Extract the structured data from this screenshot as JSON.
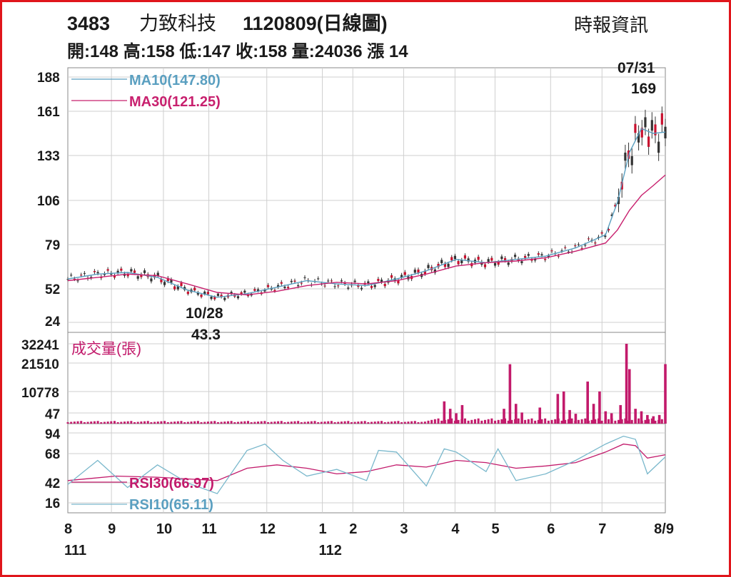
{
  "header": {
    "code": "3483",
    "company": "力致科技",
    "date_label": "1120809(日線圖)",
    "source": "時報資訊",
    "stats": "開:148 高:158 低:147 收:158 量:24036 漲 14"
  },
  "colors": {
    "frame": "#e0161c",
    "ma10": "#5a9fc0",
    "ma30": "#c8206e",
    "volume": "#c21a6b",
    "rsi10": "#7ab8cc",
    "rsi30": "#c21a6b",
    "candle": "#333333",
    "candle_up": "#c8102e"
  },
  "chart_data": [
    {
      "type": "candlestick",
      "name": "price",
      "yticks": [
        "188",
        "161",
        "133",
        "106",
        "79",
        "52",
        "24"
      ],
      "ylim": [
        24,
        188
      ],
      "legend": [
        "MA10(147.80)",
        "MA30(121.25)"
      ],
      "annotations": [
        {
          "label_top": "07/31",
          "label_bottom": "169",
          "x": 0.96,
          "value": 169
        },
        {
          "label_top": "10/28",
          "label_bottom": "43.3",
          "x": 0.232,
          "value": 43.3
        }
      ],
      "ma_series": [
        {
          "name": "MA10(147.80)",
          "x": [
            0,
            0.05,
            0.1,
            0.15,
            0.2,
            0.25,
            0.3,
            0.35,
            0.4,
            0.45,
            0.5,
            0.55,
            0.6,
            0.65,
            0.7,
            0.75,
            0.8,
            0.85,
            0.9,
            0.92,
            0.94,
            0.96,
            0.98,
            1.0
          ],
          "values": [
            58,
            61,
            62,
            59,
            51,
            45,
            48,
            53,
            57,
            55,
            54,
            58,
            63,
            70,
            68,
            70,
            72,
            77,
            85,
            105,
            135,
            150,
            147,
            147.8
          ]
        },
        {
          "name": "MA30(121.25)",
          "x": [
            0,
            0.05,
            0.1,
            0.15,
            0.2,
            0.25,
            0.3,
            0.35,
            0.4,
            0.45,
            0.5,
            0.55,
            0.6,
            0.65,
            0.7,
            0.75,
            0.8,
            0.85,
            0.9,
            0.92,
            0.94,
            0.96,
            0.98,
            1.0
          ],
          "values": [
            57,
            59,
            61,
            60,
            55,
            49,
            47,
            50,
            54,
            56,
            55,
            57,
            61,
            66,
            68,
            69,
            71,
            75,
            80,
            88,
            100,
            109,
            115,
            121.25
          ]
        }
      ]
    },
    {
      "type": "bar",
      "name": "volume",
      "title": "成交量(張)",
      "yticks": [
        "32241",
        "21510",
        "10778",
        "47"
      ],
      "ylim": [
        47,
        32241
      ],
      "bars": [
        {
          "x": 0.63,
          "v": 9000
        },
        {
          "x": 0.64,
          "v": 6000
        },
        {
          "x": 0.65,
          "v": 4200
        },
        {
          "x": 0.66,
          "v": 7500
        },
        {
          "x": 0.73,
          "v": 6000
        },
        {
          "x": 0.74,
          "v": 24000
        },
        {
          "x": 0.75,
          "v": 8000
        },
        {
          "x": 0.76,
          "v": 4500
        },
        {
          "x": 0.79,
          "v": 6500
        },
        {
          "x": 0.82,
          "v": 12000
        },
        {
          "x": 0.83,
          "v": 13000
        },
        {
          "x": 0.84,
          "v": 5500
        },
        {
          "x": 0.85,
          "v": 4000
        },
        {
          "x": 0.87,
          "v": 17000
        },
        {
          "x": 0.88,
          "v": 8000
        },
        {
          "x": 0.89,
          "v": 13000
        },
        {
          "x": 0.9,
          "v": 5000
        },
        {
          "x": 0.91,
          "v": 4200
        },
        {
          "x": 0.925,
          "v": 7500
        },
        {
          "x": 0.935,
          "v": 32241
        },
        {
          "x": 0.94,
          "v": 22000
        },
        {
          "x": 0.95,
          "v": 6000
        },
        {
          "x": 0.96,
          "v": 5000
        },
        {
          "x": 0.97,
          "v": 3500
        },
        {
          "x": 0.98,
          "v": 3000
        },
        {
          "x": 0.99,
          "v": 3500
        },
        {
          "x": 1.0,
          "v": 24036
        }
      ]
    },
    {
      "type": "line",
      "name": "rsi",
      "yticks": [
        "94",
        "68",
        "42",
        "16"
      ],
      "ylim": [
        16,
        94
      ],
      "series": [
        {
          "name": "RSI30(66.97)",
          "x": [
            0,
            0.08,
            0.15,
            0.25,
            0.3,
            0.35,
            0.4,
            0.45,
            0.5,
            0.55,
            0.6,
            0.65,
            0.7,
            0.75,
            0.8,
            0.85,
            0.9,
            0.93,
            0.95,
            0.97,
            1.0
          ],
          "values": [
            44,
            48,
            47,
            44,
            55,
            58,
            55,
            50,
            52,
            58,
            56,
            62,
            60,
            55,
            57,
            60,
            70,
            80,
            78,
            64,
            66.97
          ]
        },
        {
          "name": "RSI10(65.11)",
          "x": [
            0,
            0.05,
            0.1,
            0.15,
            0.2,
            0.25,
            0.3,
            0.33,
            0.36,
            0.4,
            0.45,
            0.5,
            0.52,
            0.55,
            0.6,
            0.63,
            0.65,
            0.7,
            0.72,
            0.75,
            0.8,
            0.85,
            0.9,
            0.93,
            0.95,
            0.97,
            1.0
          ],
          "values": [
            40,
            62,
            36,
            58,
            42,
            28,
            72,
            80,
            62,
            48,
            54,
            44,
            72,
            70,
            38,
            74,
            70,
            52,
            74,
            44,
            50,
            62,
            80,
            90,
            86,
            50,
            65.11
          ]
        }
      ]
    }
  ],
  "xaxis": {
    "labels": [
      {
        "text": "8",
        "x": 0.0
      },
      {
        "text": "9",
        "x": 0.073
      },
      {
        "text": "10",
        "x": 0.16
      },
      {
        "text": "11",
        "x": 0.236
      },
      {
        "text": "12",
        "x": 0.333
      },
      {
        "text": "1",
        "x": 0.426
      },
      {
        "text": "2",
        "x": 0.477
      },
      {
        "text": "3",
        "x": 0.562
      },
      {
        "text": "4",
        "x": 0.648
      },
      {
        "text": "5",
        "x": 0.715
      },
      {
        "text": "6",
        "x": 0.808
      },
      {
        "text": "7",
        "x": 0.894
      },
      {
        "text": "8/9",
        "x": 0.993
      }
    ],
    "year_labels": [
      {
        "text": "111",
        "x": 0.0
      },
      {
        "text": "112",
        "x": 0.426
      }
    ]
  }
}
